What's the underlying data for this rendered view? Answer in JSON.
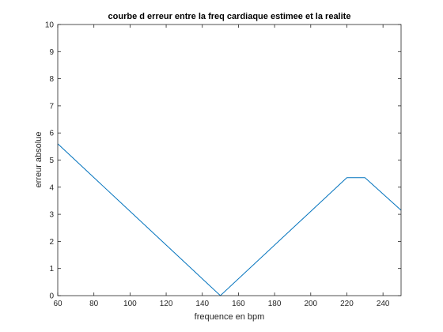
{
  "chart_data": {
    "type": "line",
    "title": "courbe d erreur entre la freq cardiaque estimee et la realite",
    "xlabel": "frequence en bpm",
    "ylabel": "erreur absolue",
    "xlim": [
      60,
      250
    ],
    "ylim": [
      0,
      10
    ],
    "xticks": [
      "60",
      "80",
      "100",
      "120",
      "140",
      "160",
      "180",
      "200",
      "220",
      "240"
    ],
    "yticks": [
      "0",
      "1",
      "2",
      "3",
      "4",
      "5",
      "6",
      "7",
      "8",
      "9",
      "10"
    ],
    "grid": false,
    "series": [
      {
        "color": "#0072bd",
        "x": [
          60,
          150,
          220,
          230,
          250
        ],
        "y": [
          5.6,
          0.0,
          4.35,
          4.35,
          3.15
        ]
      }
    ]
  }
}
